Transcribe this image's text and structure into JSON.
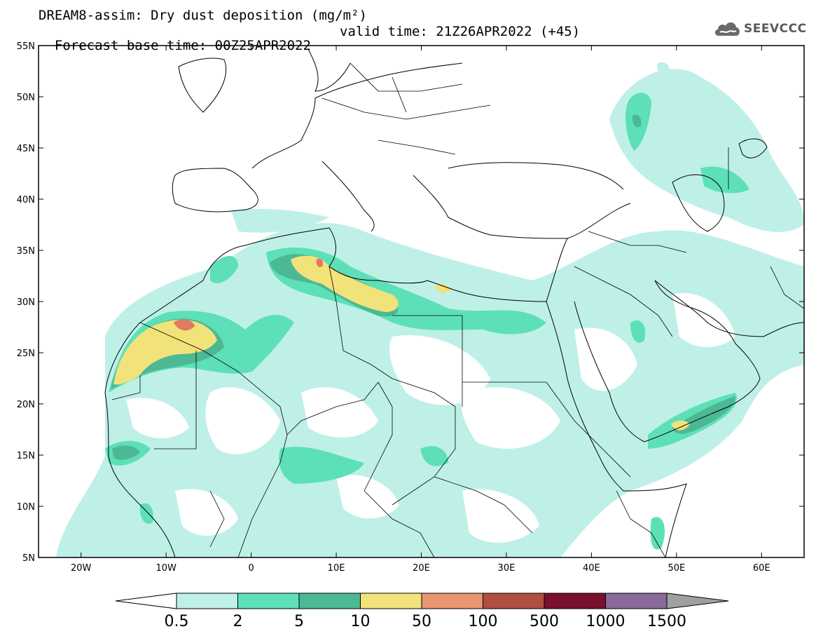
{
  "header": {
    "title_line1": "DREAM8-assim: Dry dust deposition (mg/m²)",
    "title_line2_left": "Forecast base time: 00Z25APR2022",
    "title_line2_right": "valid time: 21Z26APR2022 (+45)"
  },
  "logo": {
    "text": "SEEVCCC",
    "icon": "cloud-icon"
  },
  "map": {
    "lon_range": [
      -25,
      65
    ],
    "lat_range": [
      5,
      55
    ],
    "lon_ticks": [
      {
        "value": -20,
        "label": "20W"
      },
      {
        "value": -10,
        "label": "10W"
      },
      {
        "value": 0,
        "label": "0"
      },
      {
        "value": 10,
        "label": "10E"
      },
      {
        "value": 20,
        "label": "20E"
      },
      {
        "value": 30,
        "label": "30E"
      },
      {
        "value": 40,
        "label": "40E"
      },
      {
        "value": 50,
        "label": "50E"
      },
      {
        "value": 60,
        "label": "60E"
      }
    ],
    "lat_ticks": [
      {
        "value": 55,
        "label": "55N"
      },
      {
        "value": 50,
        "label": "50N"
      },
      {
        "value": 45,
        "label": "45N"
      },
      {
        "value": 40,
        "label": "40N"
      },
      {
        "value": 35,
        "label": "35N"
      },
      {
        "value": 30,
        "label": "30N"
      },
      {
        "value": 25,
        "label": "25N"
      },
      {
        "value": 20,
        "label": "20N"
      },
      {
        "value": 15,
        "label": "15N"
      },
      {
        "value": 10,
        "label": "10N"
      },
      {
        "value": 5,
        "label": "5N"
      }
    ],
    "coast_color": "#000000"
  },
  "colorbar": {
    "levels": [
      "0.5",
      "2",
      "5",
      "10",
      "50",
      "100",
      "500",
      "1000",
      "1500"
    ],
    "colors": [
      "#bff0e8",
      "#5de0b8",
      "#4db894",
      "#f2e27a",
      "#e89670",
      "#b04e40",
      "#7a1030",
      "#8a6a9a"
    ],
    "under_color": "#ffffff",
    "over_color": "#a0a0a0"
  }
}
